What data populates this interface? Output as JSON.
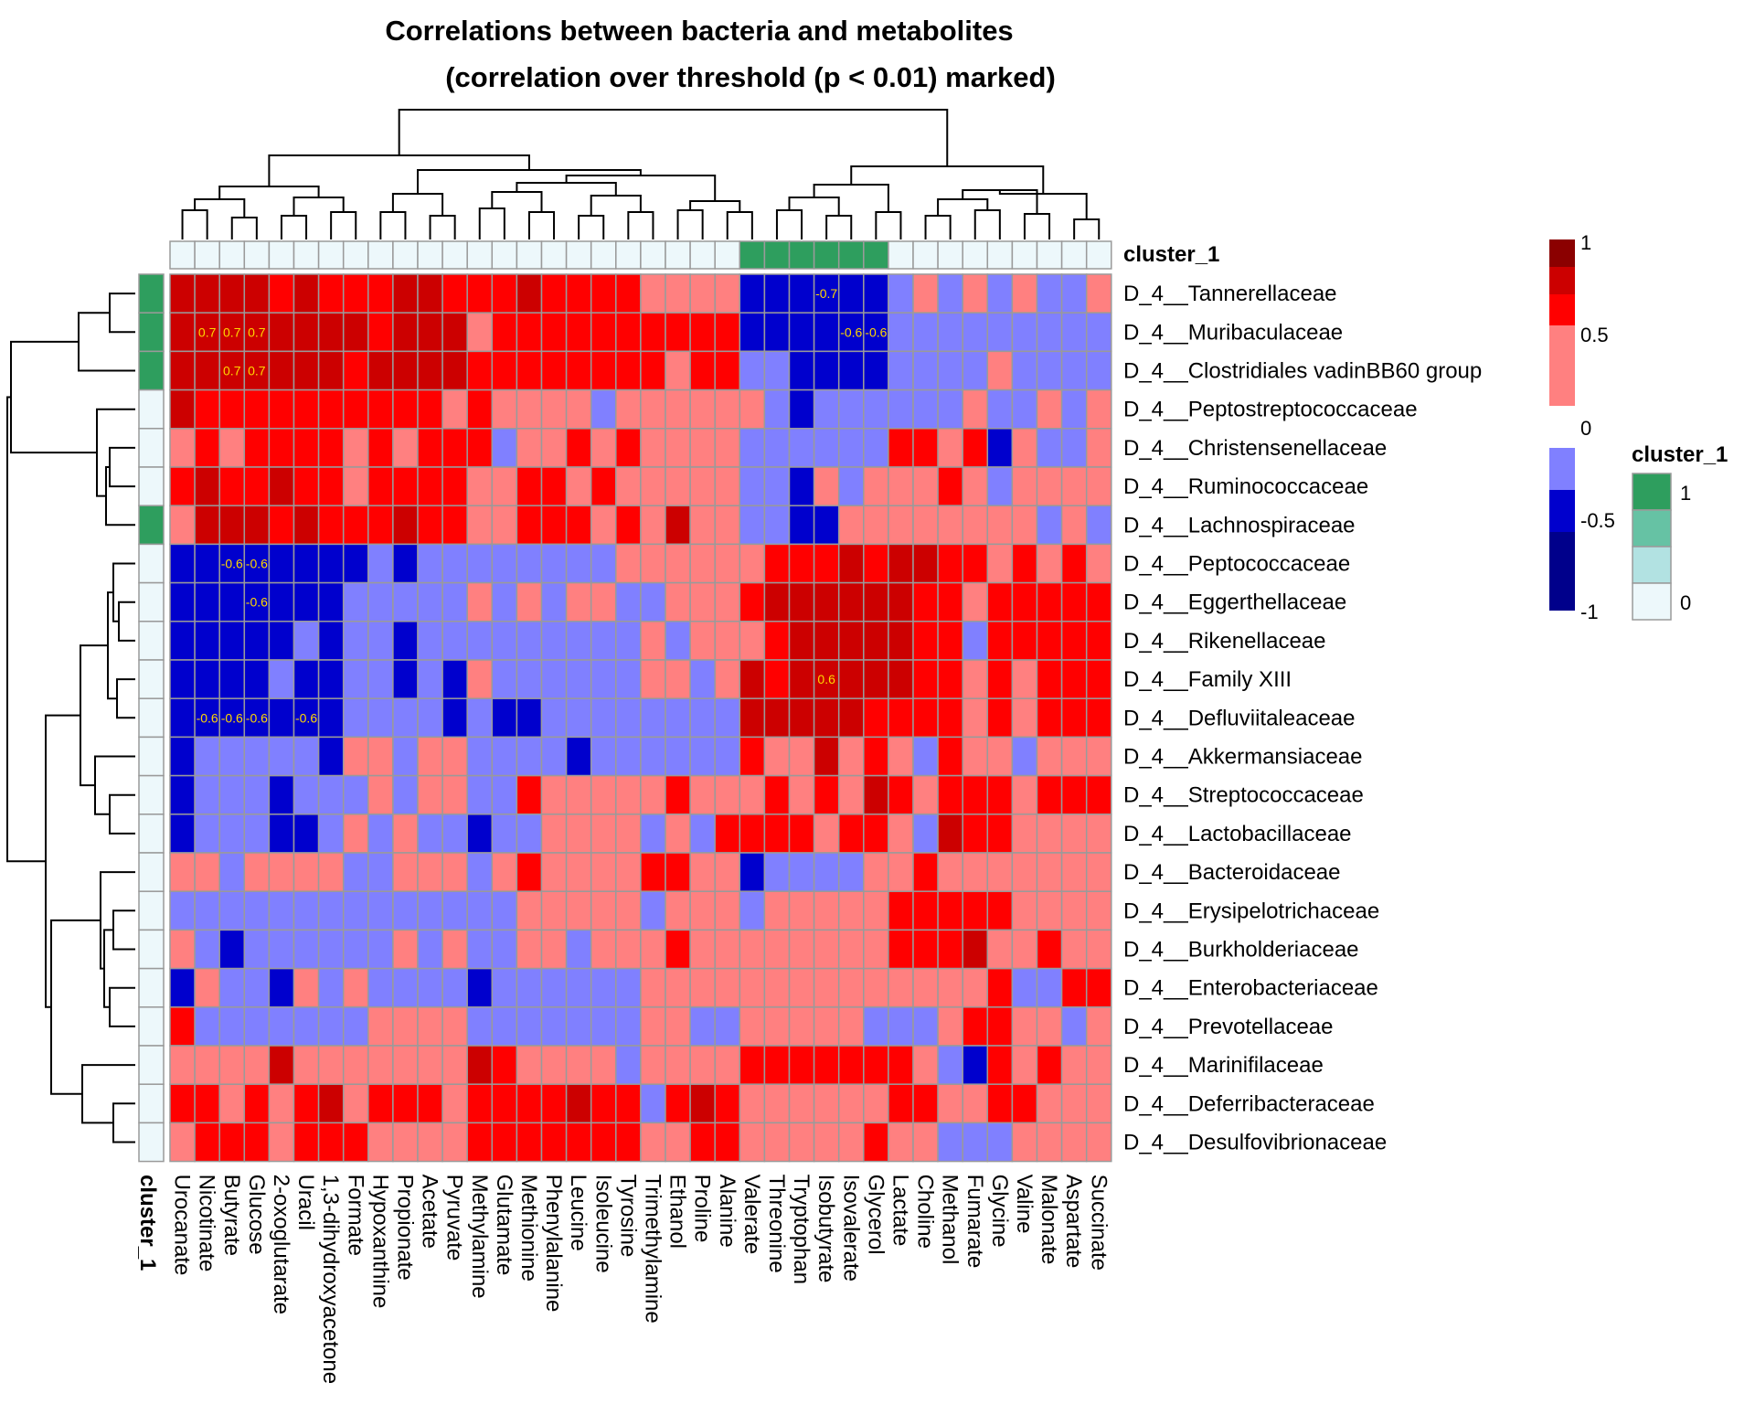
{
  "chart_data": {
    "type": "heatmap",
    "title": "Correlations between bacteria and metabolites",
    "subtitle": "(correlation over threshold (p < 0.01) marked)",
    "annotation_name": "cluster_1",
    "rows": [
      "D_4__Tannerellaceae",
      "D_4__Muribaculaceae",
      "D_4__Clostridiales vadinBB60 group",
      "D_4__Peptostreptococcaceae",
      "D_4__Christensenellaceae",
      "D_4__Ruminococcaceae",
      "D_4__Lachnospiraceae",
      "D_4__Peptococcaceae",
      "D_4__Eggerthellaceae",
      "D_4__Rikenellaceae",
      "D_4__Family XIII",
      "D_4__Defluviitaleaceae",
      "D_4__Akkermansiaceae",
      "D_4__Streptococcaceae",
      "D_4__Lactobacillaceae",
      "D_4__Bacteroidaceae",
      "D_4__Erysipelotrichaceae",
      "D_4__Burkholderiaceae",
      "D_4__Enterobacteriaceae",
      "D_4__Prevotellaceae",
      "D_4__Marinifilaceae",
      "D_4__Deferribacteraceae",
      "D_4__Desulfovibrionaceae"
    ],
    "columns": [
      "Urocanate",
      "Nicotinate",
      "Butyrate",
      "Glucose",
      "2-oxoglutarate",
      "Uracil",
      "1,3-dihydroxyacetone",
      "Formate",
      "Hypoxanthine",
      "Propionate",
      "Acetate",
      "Pyruvate",
      "Methylamine",
      "Glutamate",
      "Methionine",
      "Phenylalanine",
      "Leucine",
      "Isoleucine",
      "Tyrosine",
      "Trimethylamine",
      "Ethanol",
      "Proline",
      "Alanine",
      "Valerate",
      "Threonine",
      "Tryptophan",
      "Isobutyrate",
      "Isovalerate",
      "Glycerol",
      "Lactate",
      "Choline",
      "Methanol",
      "Fumarate",
      "Glycine",
      "Valine",
      "Malonate",
      "Aspartate",
      "Succinate"
    ],
    "row_cluster": [
      1,
      1,
      1,
      0,
      0,
      0,
      1,
      0,
      0,
      0,
      0,
      0,
      0,
      0,
      0,
      0,
      0,
      0,
      0,
      0,
      0,
      0,
      0
    ],
    "col_cluster": [
      0,
      0,
      0,
      0,
      0,
      0,
      0,
      0,
      0,
      0,
      0,
      0,
      0,
      0,
      0,
      0,
      0,
      0,
      0,
      0,
      0,
      0,
      0,
      1,
      1,
      1,
      1,
      1,
      1,
      0,
      0,
      0,
      0,
      0,
      0,
      0,
      0,
      0
    ],
    "values": [
      [
        0.55,
        0.5,
        0.55,
        0.55,
        0.3,
        0.5,
        0.3,
        0.3,
        0.3,
        0.5,
        0.5,
        0.3,
        0.3,
        0.3,
        0.6,
        0.3,
        0.3,
        0.3,
        0.3,
        0,
        0,
        0,
        0,
        -0.6,
        -0.6,
        -0.6,
        -0.7,
        -0.6,
        -0.6,
        -0.3,
        0,
        -0.3,
        0,
        -0.3,
        0,
        -0.3,
        -0.3,
        0
      ],
      [
        0.55,
        0.7,
        0.7,
        0.7,
        0.5,
        0.5,
        0.5,
        0.5,
        0.3,
        0.5,
        0.5,
        0.5,
        0,
        0.3,
        0.3,
        0.3,
        0.3,
        0.3,
        0.3,
        0.3,
        0.3,
        0.3,
        0.3,
        -0.6,
        -0.6,
        -0.6,
        -0.6,
        -0.6,
        -0.6,
        -0.3,
        -0.3,
        -0.3,
        -0.3,
        -0.3,
        -0.3,
        -0.3,
        -0.3,
        -0.3
      ],
      [
        0.6,
        0.55,
        0.7,
        0.7,
        0.5,
        0.5,
        0.5,
        0.3,
        0.5,
        0.5,
        0.5,
        0.5,
        0.3,
        0.3,
        0.3,
        0.3,
        0.3,
        0.3,
        0.3,
        0.3,
        0,
        0.3,
        0.3,
        -0.3,
        -0.3,
        -0.6,
        -0.6,
        -0.6,
        -0.6,
        -0.3,
        -0.3,
        -0.3,
        -0.3,
        0,
        -0.3,
        -0.3,
        -0.3,
        -0.3
      ],
      [
        0.5,
        0.3,
        0.3,
        0.3,
        0.3,
        0.3,
        0.3,
        0.3,
        0.3,
        0.3,
        0.3,
        0,
        0.3,
        0,
        0,
        0,
        0,
        -0.3,
        0,
        0,
        0,
        0,
        0,
        0,
        -0.3,
        -0.6,
        -0.3,
        -0.3,
        -0.3,
        -0.3,
        -0.3,
        -0.3,
        0,
        -0.3,
        -0.3,
        0,
        -0.3,
        0
      ],
      [
        0,
        0.3,
        0,
        0.3,
        0.3,
        0.3,
        0.3,
        0,
        0.3,
        0,
        0.3,
        0.3,
        0.3,
        -0.3,
        0,
        0,
        0.3,
        0,
        0.3,
        0,
        0,
        0,
        0,
        -0.3,
        -0.3,
        -0.3,
        -0.3,
        -0.3,
        -0.3,
        0.3,
        0.3,
        0,
        0.3,
        -0.6,
        0,
        -0.3,
        -0.3,
        0
      ],
      [
        0.3,
        0.5,
        0.3,
        0.3,
        0.5,
        0.3,
        0.3,
        0,
        0.3,
        0.3,
        0.3,
        0.3,
        0,
        0,
        0.3,
        0.3,
        0,
        0.3,
        0,
        0,
        0,
        0,
        0,
        -0.3,
        -0.3,
        -0.6,
        0,
        -0.3,
        0,
        0,
        0,
        0.3,
        0,
        -0.3,
        0,
        0,
        0,
        0
      ],
      [
        0,
        0.5,
        0.5,
        0.5,
        0.3,
        0.5,
        0.3,
        0.3,
        0.3,
        0.5,
        0.3,
        0.3,
        0,
        0,
        0.3,
        0.3,
        0.3,
        0,
        0.3,
        0,
        0.5,
        0,
        0,
        -0.3,
        -0.3,
        -0.6,
        -0.6,
        0,
        0,
        0,
        0,
        0,
        0,
        0,
        0,
        -0.3,
        0,
        -0.3
      ],
      [
        -0.6,
        -0.6,
        -0.6,
        -0.6,
        -0.6,
        -0.6,
        -0.6,
        -0.6,
        -0.3,
        -0.6,
        -0.3,
        -0.3,
        -0.3,
        -0.3,
        -0.3,
        -0.3,
        -0.3,
        -0.3,
        0,
        0,
        0,
        0,
        0,
        0,
        0.3,
        0.3,
        0.3,
        0.5,
        0.3,
        0.5,
        0.5,
        0.3,
        0.3,
        0,
        0.3,
        0,
        0.3,
        0
      ],
      [
        -0.7,
        -0.6,
        -0.6,
        -0.6,
        -0.6,
        -0.6,
        -0.6,
        -0.3,
        -0.3,
        -0.3,
        -0.3,
        -0.3,
        0,
        -0.3,
        0,
        -0.3,
        0,
        0,
        -0.3,
        -0.3,
        0,
        0,
        0,
        0.3,
        0.5,
        0.5,
        0.5,
        0.5,
        0.5,
        0.5,
        0.3,
        0.3,
        0,
        0.3,
        0.3,
        0.3,
        0.3,
        0.3
      ],
      [
        -0.6,
        -0.6,
        -0.6,
        -0.6,
        -0.6,
        -0.3,
        -0.6,
        -0.3,
        -0.3,
        -0.6,
        -0.3,
        -0.3,
        -0.3,
        -0.3,
        -0.3,
        -0.3,
        -0.3,
        -0.3,
        -0.3,
        0,
        -0.3,
        0,
        0,
        0,
        0.3,
        0.5,
        0.5,
        0.5,
        0.5,
        0.5,
        0.3,
        0.3,
        -0.3,
        0.3,
        0.3,
        0.3,
        0.3,
        0.3
      ],
      [
        -0.6,
        -0.6,
        -0.6,
        -0.7,
        -0.3,
        -0.6,
        -0.6,
        -0.3,
        -0.3,
        -0.6,
        -0.3,
        -0.6,
        0,
        -0.3,
        -0.3,
        -0.3,
        -0.3,
        -0.3,
        -0.3,
        0,
        0,
        -0.3,
        0,
        0.5,
        0.3,
        0.5,
        0.6,
        0.5,
        0.5,
        0.5,
        0.3,
        0.3,
        0,
        0.3,
        0,
        0.3,
        0.3,
        0.3
      ],
      [
        -0.6,
        -0.6,
        -0.6,
        -0.6,
        -0.6,
        -0.6,
        -0.6,
        -0.3,
        -0.3,
        -0.3,
        -0.3,
        -0.6,
        -0.3,
        -0.6,
        -0.6,
        -0.3,
        -0.3,
        -0.3,
        -0.3,
        -0.3,
        -0.3,
        -0.3,
        -0.3,
        0.5,
        0.5,
        0.5,
        0.5,
        0.5,
        0.3,
        0.3,
        0.3,
        0.3,
        0,
        0.3,
        0,
        0.3,
        0.3,
        0.3
      ],
      [
        -0.6,
        -0.3,
        -0.3,
        -0.3,
        -0.3,
        -0.3,
        -0.6,
        0,
        0,
        -0.3,
        0,
        0,
        -0.3,
        -0.3,
        -0.3,
        -0.3,
        -0.6,
        -0.3,
        -0.3,
        -0.3,
        -0.3,
        -0.3,
        -0.3,
        0.3,
        0,
        0,
        0.5,
        0,
        0.3,
        0,
        -0.3,
        0.3,
        0,
        0,
        -0.3,
        0,
        0,
        0
      ],
      [
        -0.6,
        -0.3,
        -0.3,
        -0.3,
        -0.6,
        -0.3,
        -0.3,
        -0.3,
        0,
        -0.3,
        0,
        0,
        -0.3,
        -0.3,
        0.3,
        0,
        0,
        0,
        0,
        0,
        0.3,
        0,
        0,
        0,
        0.3,
        0,
        0.3,
        0,
        0.5,
        0.3,
        0,
        0.3,
        0.3,
        0.3,
        0,
        0.3,
        0.3,
        0.3
      ],
      [
        -0.6,
        -0.3,
        -0.3,
        -0.3,
        -0.6,
        -0.6,
        -0.3,
        0,
        -0.3,
        0,
        -0.3,
        -0.3,
        -0.6,
        -0.3,
        -0.3,
        0,
        0,
        0,
        0,
        -0.3,
        0,
        -0.3,
        0.3,
        0.3,
        0.3,
        0.3,
        0,
        0.3,
        0.3,
        0,
        -0.3,
        0.5,
        0.3,
        0.3,
        0,
        0,
        0,
        0
      ],
      [
        0,
        0,
        -0.3,
        0,
        0,
        0,
        0,
        -0.3,
        -0.3,
        0,
        0,
        0,
        -0.3,
        0,
        0.3,
        0,
        0,
        0,
        0,
        0.3,
        0.3,
        0,
        0,
        -0.6,
        -0.3,
        -0.3,
        -0.3,
        -0.3,
        0,
        0,
        0.3,
        0,
        0,
        0,
        0,
        0,
        0,
        0
      ],
      [
        -0.3,
        -0.3,
        -0.3,
        -0.3,
        -0.3,
        -0.3,
        -0.3,
        -0.3,
        -0.3,
        -0.3,
        -0.3,
        -0.3,
        -0.3,
        -0.3,
        0,
        0,
        0,
        0,
        0,
        -0.3,
        0,
        0,
        0,
        -0.3,
        0,
        0,
        0,
        0,
        0,
        0.3,
        0.3,
        0.3,
        0.3,
        0.3,
        0,
        0,
        0,
        0
      ],
      [
        0,
        -0.3,
        -0.6,
        -0.3,
        -0.3,
        -0.3,
        -0.3,
        -0.3,
        -0.3,
        0,
        -0.3,
        0,
        -0.3,
        -0.3,
        0,
        0,
        -0.3,
        0,
        0,
        0,
        0.3,
        0,
        0,
        0,
        0,
        0,
        0,
        0,
        0,
        0.3,
        0.3,
        0.3,
        0.5,
        0,
        0,
        0.3,
        0,
        0
      ],
      [
        -0.6,
        0,
        -0.3,
        -0.3,
        -0.6,
        0,
        -0.3,
        0,
        -0.3,
        -0.3,
        -0.3,
        -0.3,
        -0.6,
        -0.3,
        -0.3,
        -0.3,
        -0.3,
        -0.3,
        -0.3,
        0,
        0,
        0,
        0,
        0,
        0,
        0,
        0,
        0,
        0,
        0,
        0,
        0,
        0,
        0.3,
        -0.3,
        -0.3,
        0.3,
        0.3
      ],
      [
        0.3,
        -0.3,
        -0.3,
        -0.3,
        -0.3,
        -0.3,
        -0.3,
        -0.3,
        0,
        0,
        0,
        0,
        -0.3,
        -0.3,
        -0.3,
        -0.3,
        -0.3,
        -0.3,
        -0.3,
        0,
        0,
        -0.3,
        -0.3,
        0,
        0,
        0,
        0,
        0,
        -0.3,
        -0.3,
        -0.3,
        0,
        0.3,
        0.3,
        0,
        0,
        -0.3,
        0
      ],
      [
        0,
        0,
        0,
        0,
        0.5,
        0,
        0,
        0,
        0,
        0,
        0,
        0,
        0.5,
        0.3,
        0,
        0,
        0,
        0,
        -0.3,
        0,
        0,
        0,
        0,
        0.3,
        0.3,
        0.3,
        0.3,
        0.3,
        0.3,
        0.3,
        0,
        -0.3,
        -0.6,
        0.3,
        0,
        0.3,
        0,
        0
      ],
      [
        0.3,
        0.3,
        0,
        0.3,
        0,
        0.3,
        0.5,
        0,
        0.3,
        0.3,
        0.3,
        0,
        0.3,
        0.3,
        0.3,
        0.3,
        0.5,
        0.3,
        0.3,
        -0.3,
        0.3,
        0.5,
        0.3,
        0,
        0,
        0,
        0,
        0,
        0,
        0.3,
        0.3,
        0,
        0,
        0.3,
        0.3,
        0,
        0,
        0
      ],
      [
        0,
        0.3,
        0.3,
        0.3,
        0,
        0.3,
        0.3,
        0.3,
        0,
        0,
        0,
        0,
        0.3,
        0.3,
        0.3,
        0.3,
        0.3,
        0.3,
        0.3,
        0,
        0,
        0.3,
        0.3,
        0,
        0,
        0,
        0,
        0,
        0.3,
        0,
        0,
        -0.3,
        -0.3,
        -0.3,
        0,
        0,
        0,
        0
      ]
    ],
    "cell_labels": [
      {
        "row": 0,
        "col": 26,
        "text": "-0.7"
      },
      {
        "row": 1,
        "col": 1,
        "text": "0.7"
      },
      {
        "row": 1,
        "col": 2,
        "text": "0.7"
      },
      {
        "row": 1,
        "col": 3,
        "text": "0.7"
      },
      {
        "row": 1,
        "col": 27,
        "text": "-0.6"
      },
      {
        "row": 1,
        "col": 28,
        "text": "-0.6"
      },
      {
        "row": 2,
        "col": 2,
        "text": "0.7"
      },
      {
        "row": 2,
        "col": 3,
        "text": "0.7"
      },
      {
        "row": 7,
        "col": 2,
        "text": "-0.6"
      },
      {
        "row": 7,
        "col": 3,
        "text": "-0.6"
      },
      {
        "row": 8,
        "col": 3,
        "text": "-0.6"
      },
      {
        "row": 10,
        "col": 26,
        "text": "0.6"
      },
      {
        "row": 11,
        "col": 1,
        "text": "-0.6"
      },
      {
        "row": 11,
        "col": 2,
        "text": "-0.6"
      },
      {
        "row": 11,
        "col": 3,
        "text": "-0.6"
      },
      {
        "row": 11,
        "col": 5,
        "text": "-0.6"
      }
    ],
    "color_scale": {
      "breaks": [
        -1,
        -0.75,
        -0.5,
        -0.25,
        0,
        0.25,
        0.5,
        0.75,
        1
      ],
      "colors": [
        "#00008b",
        "#0000cd",
        "#8080ff",
        "#ffffff",
        "#ff8080",
        "#ff0000",
        "#cc0000",
        "#8b0000"
      ]
    },
    "legend_ticks": [
      "1",
      "0.5",
      "0",
      "-0.5",
      "-1"
    ],
    "cluster_legend": {
      "title": "cluster_1",
      "colors": [
        "#2e9e5e",
        "#66c2a4",
        "#b2e2e2",
        "#edf8fb"
      ],
      "tick_labels": [
        "1",
        "0"
      ]
    },
    "cluster_colors": {
      "0": "#edf8fb",
      "1": "#2e9e5e"
    },
    "legend_placement": "right",
    "grid": true
  }
}
